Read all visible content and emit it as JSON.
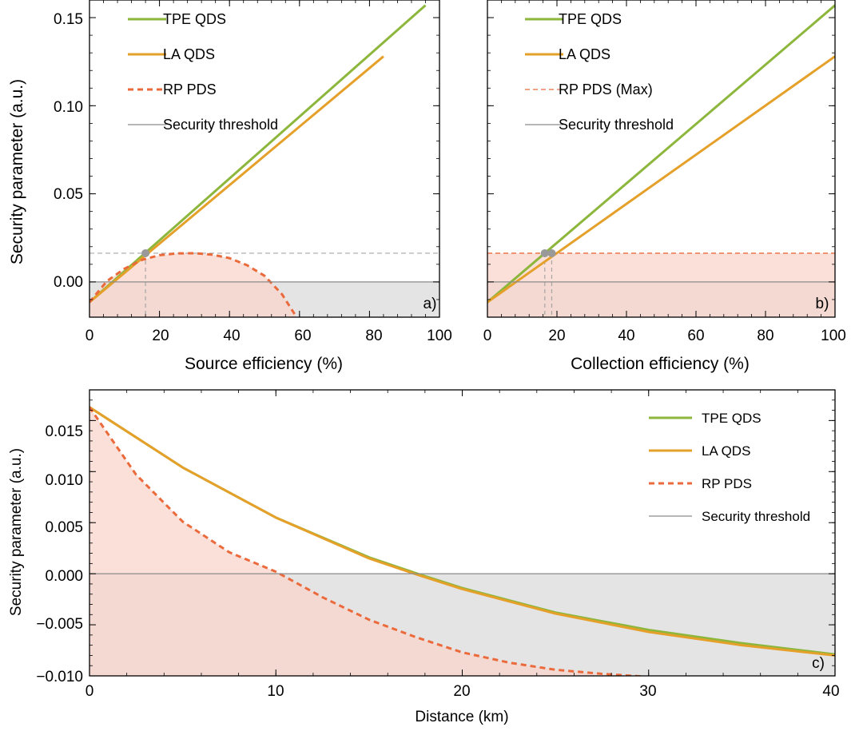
{
  "colors": {
    "tpe": "#8cb63c",
    "la": "#e5a02a",
    "rp": "#eb6a3b",
    "threshold": "#8a8a8a",
    "guide": "#a6a6a6",
    "insecure_fill": "#e4e4e4",
    "rp_fill": "#f8d6cc",
    "marker": "#999999"
  },
  "chart_data": [
    {
      "id": "a",
      "panel_label": "a)",
      "type": "line",
      "xlabel": "Source efficiency (%)",
      "ylabel": "Security parameter (a.u.)",
      "xlim": [
        0,
        100
      ],
      "ylim": [
        -0.02,
        0.16
      ],
      "xticks": [
        "0",
        "20",
        "40",
        "60",
        "80",
        "100"
      ],
      "yticks": [
        "0.00",
        "0.05",
        "0.10",
        "0.15"
      ],
      "legend_position": "top-left",
      "legend": [
        "TPE QDS",
        "LA QDS",
        "RP PDS",
        "Security threshold"
      ],
      "series": [
        {
          "name": "TPE QDS",
          "x": [
            0,
            96
          ],
          "y": [
            -0.0115,
            0.157
          ]
        },
        {
          "name": "LA QDS",
          "x": [
            0,
            84
          ],
          "y": [
            -0.0115,
            0.128
          ]
        },
        {
          "name": "RP PDS",
          "style": "dashed",
          "x": [
            0,
            5,
            10,
            15,
            20,
            25,
            30,
            35,
            40,
            45,
            50,
            55,
            59
          ],
          "y": [
            -0.0115,
            0.0005,
            0.0075,
            0.0125,
            0.0152,
            0.0162,
            0.0163,
            0.0155,
            0.0135,
            0.0095,
            0.0035,
            -0.007,
            -0.0195
          ]
        },
        {
          "name": "Security threshold",
          "x": [
            0,
            100
          ],
          "y": [
            0,
            0
          ]
        }
      ],
      "threshold_point": {
        "x": 16,
        "y": 0.0163
      }
    },
    {
      "id": "b",
      "panel_label": "b)",
      "type": "line",
      "xlabel": "Collection efficiency (%)",
      "ylabel": "",
      "xlim": [
        0,
        100
      ],
      "ylim": [
        -0.02,
        0.16
      ],
      "xticks": [
        "0",
        "20",
        "40",
        "60",
        "80",
        "100"
      ],
      "yticks": [],
      "legend_position": "top-left",
      "legend": [
        "TPE QDS",
        "LA QDS",
        "RP PDS (Max)",
        "Security threshold"
      ],
      "series": [
        {
          "name": "TPE QDS",
          "x": [
            0,
            100
          ],
          "y": [
            -0.0115,
            0.157
          ]
        },
        {
          "name": "LA QDS",
          "x": [
            0,
            100
          ],
          "y": [
            -0.0115,
            0.128
          ]
        },
        {
          "name": "RP PDS (Max)",
          "style": "dashed",
          "x": [
            0,
            100
          ],
          "y": [
            0.0163,
            0.0163
          ]
        },
        {
          "name": "Security threshold",
          "x": [
            0,
            100
          ],
          "y": [
            0,
            0
          ]
        }
      ],
      "threshold_points": [
        {
          "x": 16.5,
          "y": 0.0163
        },
        {
          "x": 18.5,
          "y": 0.0163
        }
      ]
    },
    {
      "id": "c",
      "panel_label": "c)",
      "type": "line",
      "xlabel": "Distance (km)",
      "ylabel": "Security parameter (a.u.)",
      "xlim": [
        0,
        40
      ],
      "ylim": [
        -0.01,
        0.018
      ],
      "xticks": [
        "0",
        "10",
        "20",
        "30",
        "40"
      ],
      "yticks": [
        "−0.010",
        "−0.005",
        "0.000",
        "0.005",
        "0.010",
        "0.015"
      ],
      "legend_position": "top-right",
      "legend": [
        "TPE QDS",
        "LA QDS",
        "RP PDS",
        "Security threshold"
      ],
      "series": [
        {
          "name": "TPE QDS",
          "x": [
            0,
            5,
            10,
            15,
            17.6,
            20,
            25,
            30,
            35,
            40
          ],
          "y": [
            0.0163,
            0.0104,
            0.0055,
            0.0016,
            0.0,
            -0.0014,
            -0.0038,
            -0.0055,
            -0.0068,
            -0.0079
          ]
        },
        {
          "name": "LA QDS",
          "x": [
            0,
            5,
            10,
            15,
            17.6,
            20,
            25,
            30,
            35,
            40
          ],
          "y": [
            0.0163,
            0.0104,
            0.0055,
            0.0015,
            -0.0001,
            -0.0015,
            -0.0039,
            -0.0057,
            -0.007,
            -0.008
          ]
        },
        {
          "name": "RP PDS",
          "style": "dashed",
          "x": [
            0,
            2.5,
            5,
            7.5,
            10,
            12.5,
            15,
            17.5,
            20,
            22.5,
            25,
            27.5,
            30
          ],
          "y": [
            0.0163,
            0.0097,
            0.0051,
            0.0021,
            0.0002,
            -0.0023,
            -0.0045,
            -0.0062,
            -0.0077,
            -0.0087,
            -0.0094,
            -0.0098,
            -0.0101
          ]
        },
        {
          "name": "Security threshold",
          "x": [
            0,
            40
          ],
          "y": [
            0,
            0
          ]
        }
      ]
    }
  ]
}
